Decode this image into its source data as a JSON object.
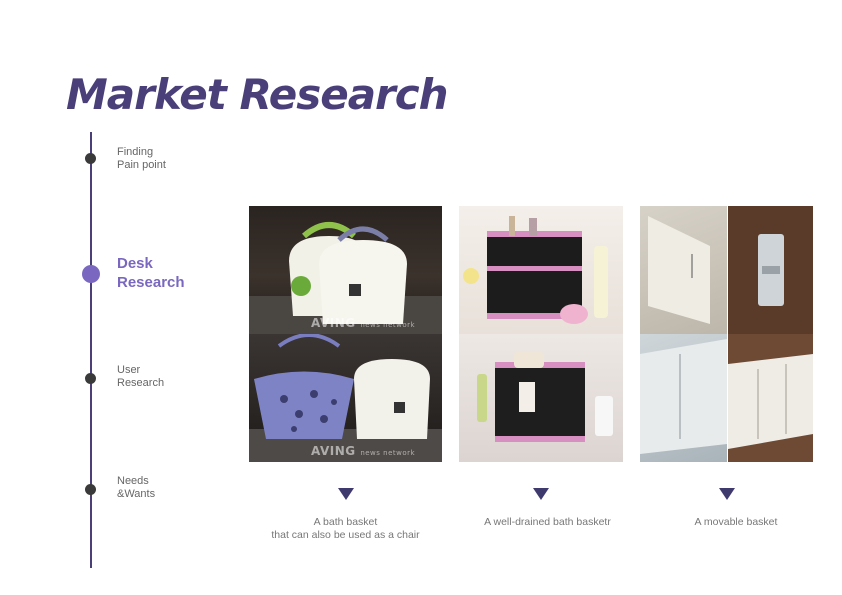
{
  "page": {
    "title": "Market Research"
  },
  "timeline": {
    "steps": [
      {
        "label": "Finding\nPain point",
        "active": false
      },
      {
        "label": "Desk\nResearch",
        "active": true
      },
      {
        "label": "User\nResearch",
        "active": false
      },
      {
        "label": "Needs\n&Wants",
        "active": false
      }
    ]
  },
  "watermark": {
    "brand": "AVING",
    "sub": "news network"
  },
  "products": [
    {
      "caption": "A bath basket\nthat can also be used as a chair"
    },
    {
      "caption": "A well-drained bath basketr"
    },
    {
      "caption": "A movable basket"
    }
  ],
  "colors": {
    "accent": "#4a3f78",
    "active": "#7a68c0",
    "arrow": "#3f3a6e"
  }
}
